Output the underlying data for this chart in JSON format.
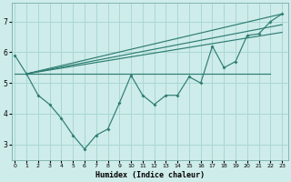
{
  "xlabel": "Humidex (Indice chaleur)",
  "background_color": "#ceecea",
  "grid_color": "#a8d8d4",
  "line_color": "#2e7d72",
  "x_ticks": [
    0,
    1,
    2,
    3,
    4,
    5,
    6,
    7,
    8,
    9,
    10,
    11,
    12,
    13,
    14,
    15,
    16,
    17,
    18,
    19,
    20,
    21,
    22,
    23
  ],
  "ylim": [
    2.5,
    7.6
  ],
  "xlim": [
    -0.3,
    23.5
  ],
  "yticks": [
    3,
    4,
    5,
    6,
    7
  ],
  "scatter_line": [
    5.9,
    5.3,
    4.6,
    4.3,
    3.85,
    3.3,
    2.85,
    3.3,
    3.5,
    4.35,
    5.25,
    4.6,
    4.3,
    4.6,
    4.6,
    5.2,
    5.0,
    6.2,
    5.5,
    5.7,
    6.55,
    6.6,
    7.0,
    7.25
  ],
  "straight_lines": [
    {
      "x": [
        1,
        23
      ],
      "y": [
        5.3,
        7.25
      ]
    },
    {
      "x": [
        1,
        23
      ],
      "y": [
        5.3,
        6.9
      ]
    },
    {
      "x": [
        1,
        23
      ],
      "y": [
        5.3,
        6.65
      ]
    },
    {
      "x": [
        0,
        22
      ],
      "y": [
        5.3,
        5.3
      ]
    }
  ]
}
